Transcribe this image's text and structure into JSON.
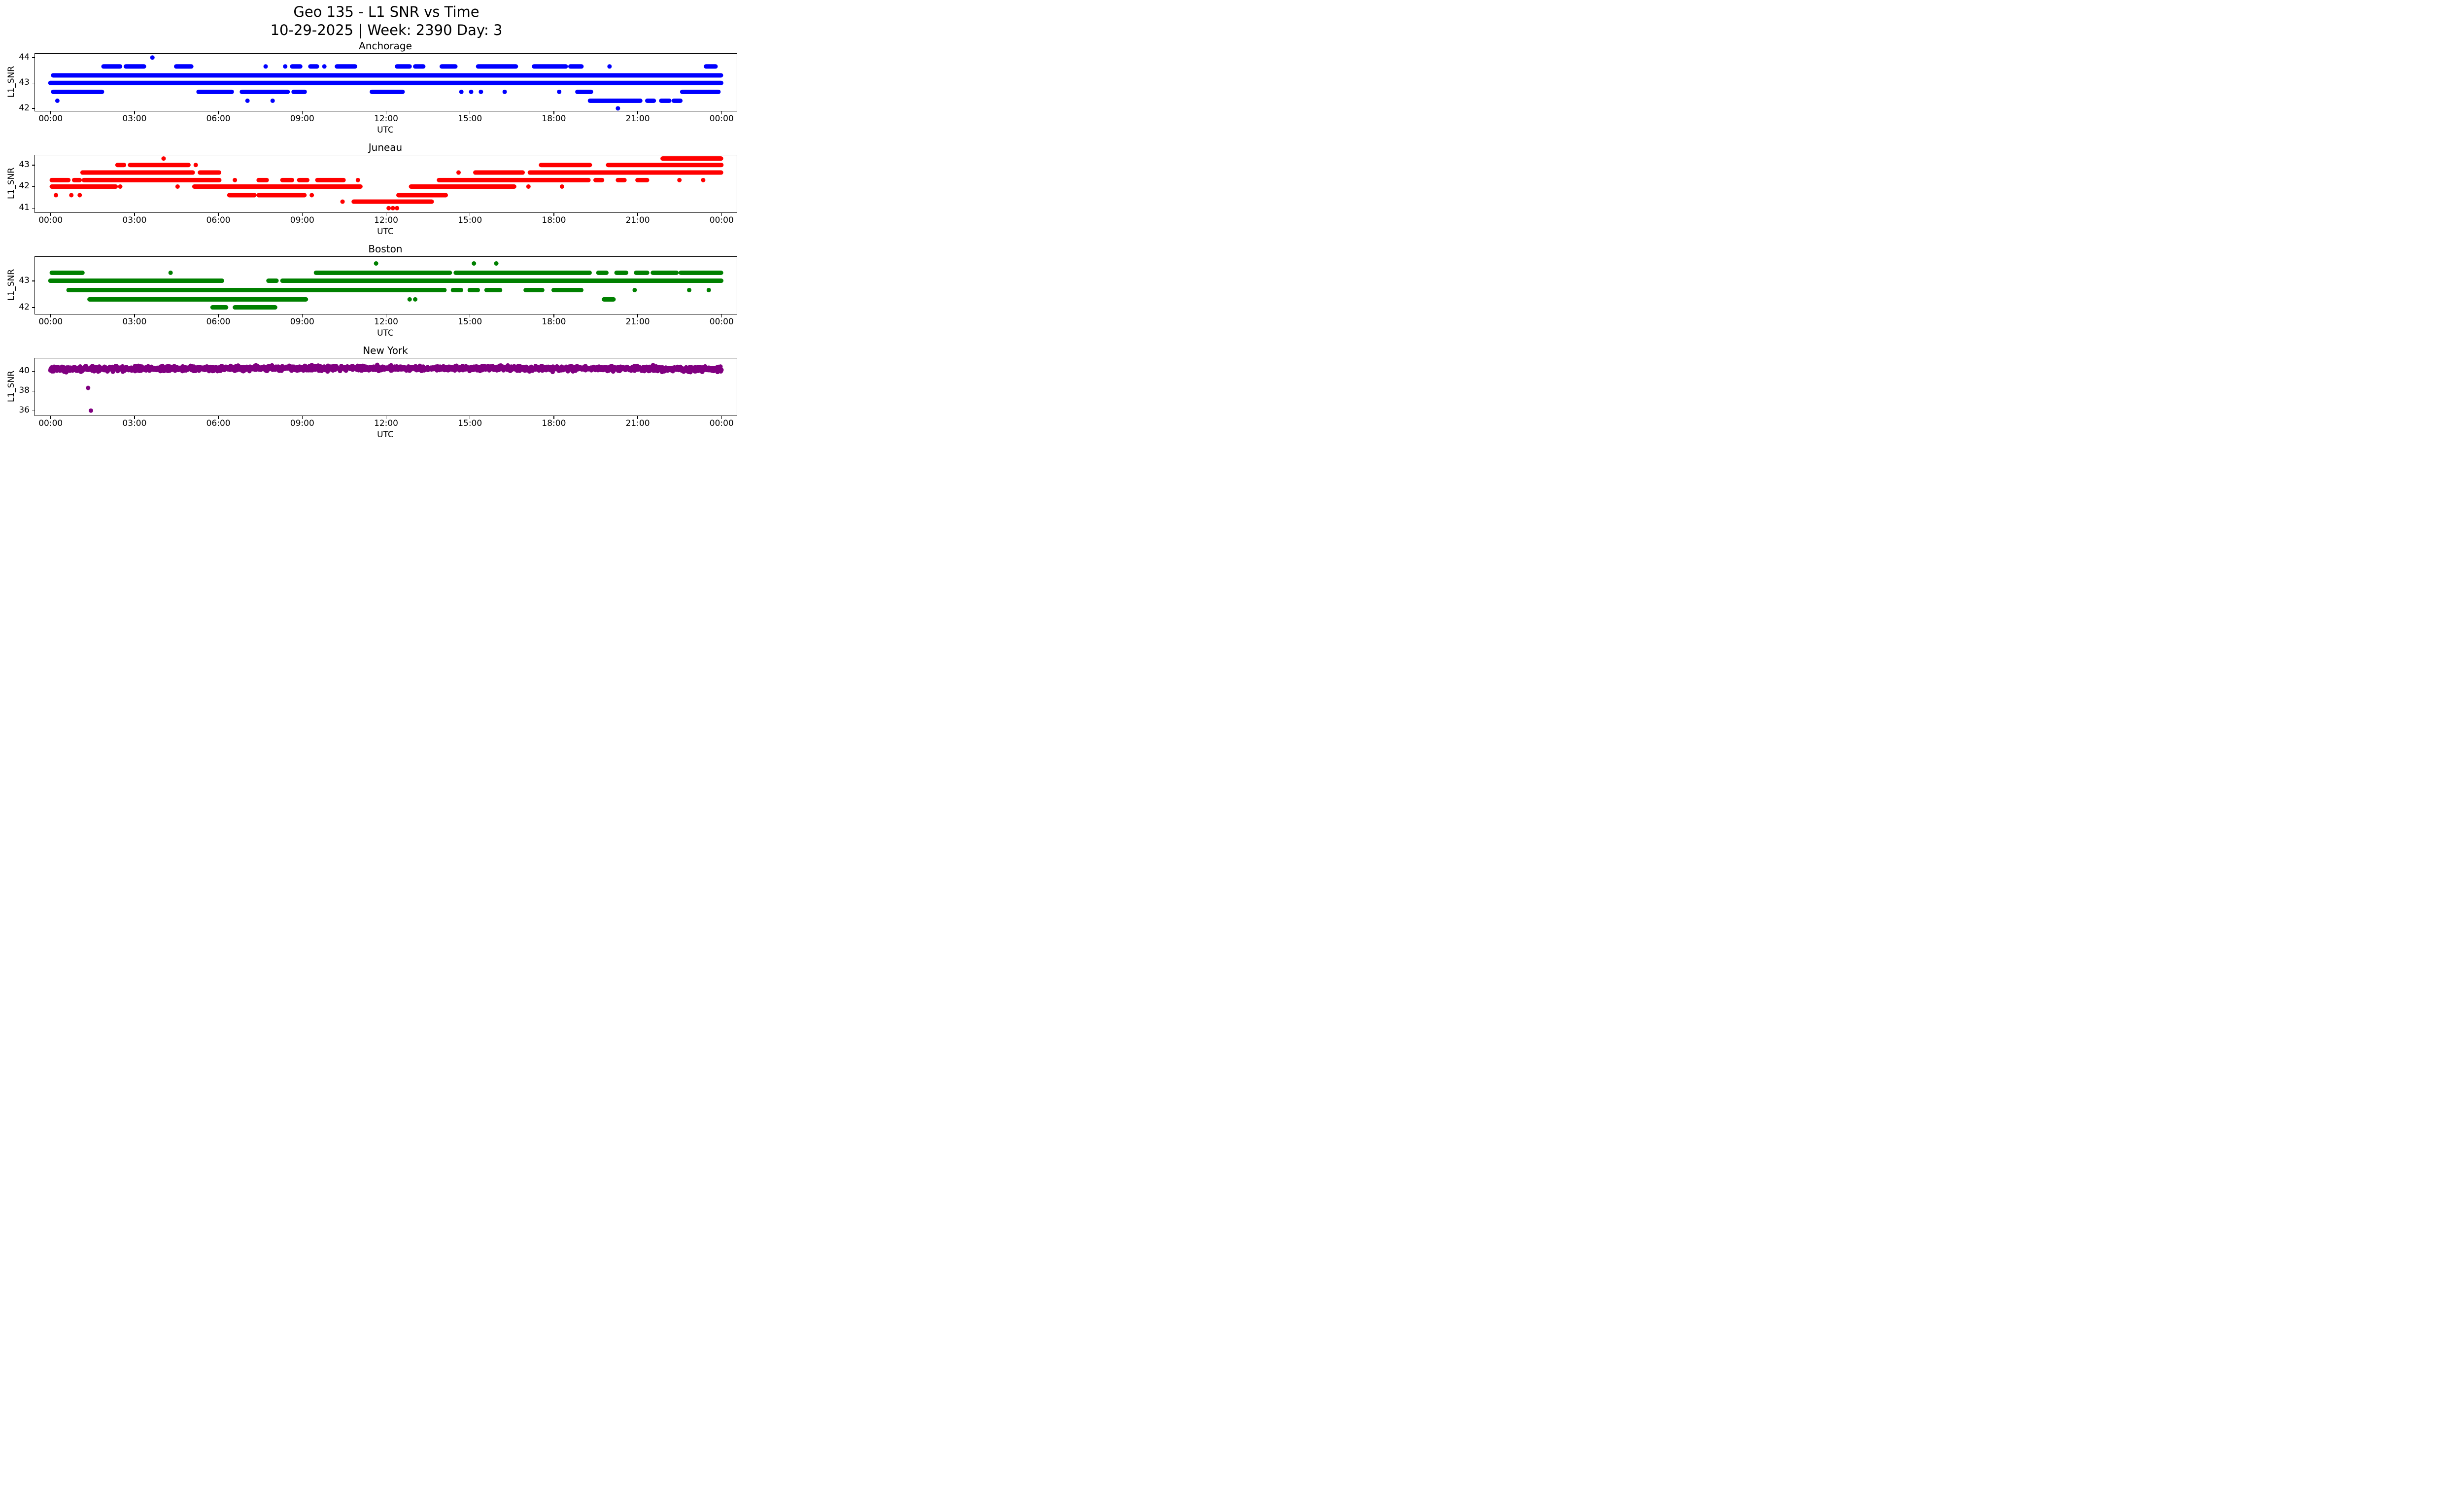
{
  "chart_data": {
    "type": "scatter",
    "title": "Geo 135 - L1 SNR vs Time",
    "subtitle": "10-29-2025 | Week: 2390 Day: 3",
    "xlabel": "UTC",
    "ylabel": "L1_SNR",
    "grid": false,
    "legend": "none",
    "xlim": [
      -0.55,
      24.55
    ],
    "xticks": {
      "values": [
        0,
        3,
        6,
        9,
        12,
        15,
        18,
        21,
        24
      ],
      "labels": [
        "00:00",
        "03:00",
        "06:00",
        "09:00",
        "12:00",
        "15:00",
        "18:00",
        "21:00",
        "00:00"
      ]
    },
    "subplots": [
      {
        "title": "Anchorage",
        "color": "#0000ff",
        "ylim": [
          41.9,
          44.15
        ],
        "yticks": [
          42,
          43,
          44
        ],
        "bands": [
          {
            "y": 44.0,
            "singles": [
              3.65
            ]
          },
          {
            "y": 43.65,
            "segments": [
              [
                1.9,
                2.5
              ],
              [
                2.7,
                3.35
              ],
              [
                4.5,
                5.05
              ],
              [
                8.65,
                8.95
              ],
              [
                9.3,
                9.55
              ],
              [
                10.25,
                10.9
              ],
              [
                12.4,
                12.85
              ],
              [
                13.05,
                13.35
              ],
              [
                14.0,
                14.5
              ],
              [
                15.3,
                16.65
              ],
              [
                17.3,
                18.45
              ],
              [
                18.6,
                19.0
              ],
              [
                23.45,
                23.8
              ]
            ],
            "singles": [
              7.7,
              8.4,
              9.8,
              20.0
            ]
          },
          {
            "y": 43.3,
            "segments": [
              [
                0.1,
                24.0
              ]
            ]
          },
          {
            "y": 43.0,
            "segments": [
              [
                0.0,
                24.0
              ]
            ]
          },
          {
            "y": 42.65,
            "segments": [
              [
                0.1,
                1.85
              ],
              [
                5.3,
                6.5
              ],
              [
                6.85,
                8.5
              ],
              [
                8.7,
                9.1
              ],
              [
                11.5,
                12.6
              ],
              [
                18.85,
                19.35
              ],
              [
                22.6,
                23.9
              ]
            ],
            "singles": [
              14.7,
              15.05,
              15.4,
              16.25,
              18.2
            ]
          },
          {
            "y": 42.3,
            "segments": [
              [
                19.3,
                21.1
              ],
              [
                21.35,
                21.6
              ],
              [
                21.85,
                22.15
              ],
              [
                22.3,
                22.55
              ]
            ],
            "singles": [
              0.25,
              7.05,
              7.95
            ]
          },
          {
            "y": 42.0,
            "singles": [
              20.3
            ]
          }
        ],
        "outliers": []
      },
      {
        "title": "Juneau",
        "color": "#ff0000",
        "ylim": [
          40.8,
          43.45
        ],
        "yticks": [
          41,
          42,
          43
        ],
        "bands": [
          {
            "y": 43.3,
            "segments": [
              [
                21.9,
                24.0
              ]
            ],
            "singles": [
              4.05
            ]
          },
          {
            "y": 43.0,
            "segments": [
              [
                2.4,
                2.65
              ],
              [
                2.85,
                4.95
              ],
              [
                17.55,
                19.3
              ],
              [
                19.95,
                24.0
              ]
            ],
            "singles": [
              5.2
            ]
          },
          {
            "y": 42.65,
            "segments": [
              [
                1.15,
                5.1
              ],
              [
                5.35,
                6.05
              ],
              [
                15.2,
                16.9
              ],
              [
                17.15,
                24.0
              ]
            ],
            "singles": [
              14.6
            ]
          },
          {
            "y": 42.3,
            "segments": [
              [
                0.05,
                0.65
              ],
              [
                0.85,
                1.05
              ],
              [
                1.2,
                6.05
              ],
              [
                7.45,
                7.75
              ],
              [
                8.3,
                8.65
              ],
              [
                8.9,
                9.2
              ],
              [
                9.55,
                10.5
              ],
              [
                13.9,
                19.25
              ],
              [
                19.5,
                19.75
              ],
              [
                20.3,
                20.55
              ],
              [
                21.0,
                21.35
              ]
            ],
            "singles": [
              6.6,
              11.0,
              22.5,
              23.35
            ]
          },
          {
            "y": 42.0,
            "segments": [
              [
                0.05,
                2.35
              ],
              [
                5.15,
                11.1
              ],
              [
                12.9,
                16.6
              ]
            ],
            "singles": [
              2.5,
              4.55,
              17.1,
              18.3
            ]
          },
          {
            "y": 41.6,
            "segments": [
              [
                6.4,
                7.3
              ],
              [
                7.45,
                9.1
              ],
              [
                12.45,
                14.15
              ]
            ],
            "singles": [
              0.2,
              0.75,
              1.05,
              9.35
            ]
          },
          {
            "y": 41.3,
            "segments": [
              [
                10.85,
                13.65
              ]
            ],
            "singles": [
              10.45
            ]
          },
          {
            "y": 41.0,
            "singles": [
              12.1,
              12.25,
              12.4
            ]
          }
        ],
        "outliers": []
      },
      {
        "title": "Boston",
        "color": "#008000",
        "ylim": [
          41.75,
          43.9
        ],
        "yticks": [
          42,
          43
        ],
        "bands": [
          {
            "y": 43.65,
            "singles": [
              11.65,
              15.15,
              15.95
            ]
          },
          {
            "y": 43.3,
            "segments": [
              [
                0.05,
                1.15
              ],
              [
                9.5,
                14.3
              ],
              [
                14.5,
                19.3
              ],
              [
                19.6,
                19.9
              ],
              [
                20.25,
                20.6
              ],
              [
                20.95,
                21.35
              ],
              [
                21.55,
                22.4
              ],
              [
                22.55,
                24.0
              ]
            ],
            "singles": [
              4.3
            ]
          },
          {
            "y": 43.0,
            "segments": [
              [
                0.0,
                6.15
              ],
              [
                7.8,
                8.1
              ],
              [
                8.3,
                24.0
              ]
            ]
          },
          {
            "y": 42.65,
            "segments": [
              [
                0.65,
                14.1
              ],
              [
                14.4,
                14.7
              ],
              [
                15.0,
                15.3
              ],
              [
                15.6,
                16.1
              ],
              [
                17.0,
                17.6
              ],
              [
                18.0,
                19.0
              ]
            ],
            "singles": [
              20.9,
              22.85,
              23.55
            ]
          },
          {
            "y": 42.3,
            "segments": [
              [
                1.4,
                9.15
              ],
              [
                19.8,
                20.15
              ]
            ],
            "singles": [
              12.85,
              13.05
            ]
          },
          {
            "y": 42.0,
            "segments": [
              [
                5.8,
                6.3
              ],
              [
                6.6,
                8.05
              ]
            ]
          }
        ],
        "outliers": []
      },
      {
        "title": "New York",
        "color": "#800080",
        "ylim": [
          35.5,
          41.3
        ],
        "yticks": [
          36,
          38,
          40
        ],
        "bands": [
          {
            "y": 40.2,
            "type": "noise",
            "amp": 0.38,
            "wave": 0.1,
            "step": 0.012,
            "segments": [
              [
                0.0,
                24.0
              ]
            ]
          }
        ],
        "outliers": [
          [
            1.35,
            38.3
          ],
          [
            1.45,
            36.0
          ]
        ]
      }
    ]
  }
}
